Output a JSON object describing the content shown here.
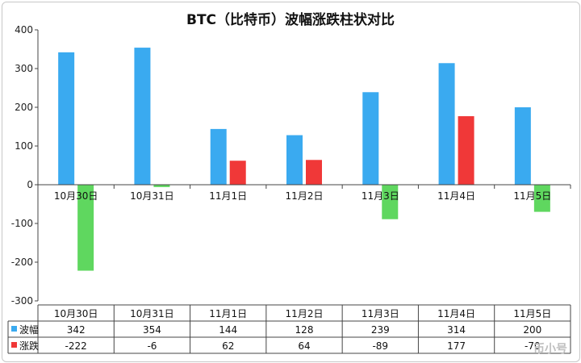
{
  "chart_data": {
    "type": "bar",
    "title": "BTC（比特币）波幅涨跌柱状对比",
    "categories": [
      "10月30日",
      "10月31日",
      "11月1日",
      "11月2日",
      "11月3日",
      "11月4日",
      "11月5日"
    ],
    "ylim": [
      -300,
      400
    ],
    "yticks": [
      400,
      300,
      200,
      100,
      0,
      -100,
      -200,
      -300
    ],
    "grid": false,
    "legend": "data-table",
    "series": [
      {
        "name": "波幅",
        "values": [
          342,
          354,
          144,
          128,
          239,
          314,
          200
        ],
        "color": "#3aaaf0"
      },
      {
        "name": "涨跌",
        "values": [
          -222,
          -6,
          62,
          64,
          -89,
          177,
          -70
        ],
        "color": "#f03838",
        "negative_color": "#5fd75f"
      }
    ]
  },
  "watermark": "币小号"
}
